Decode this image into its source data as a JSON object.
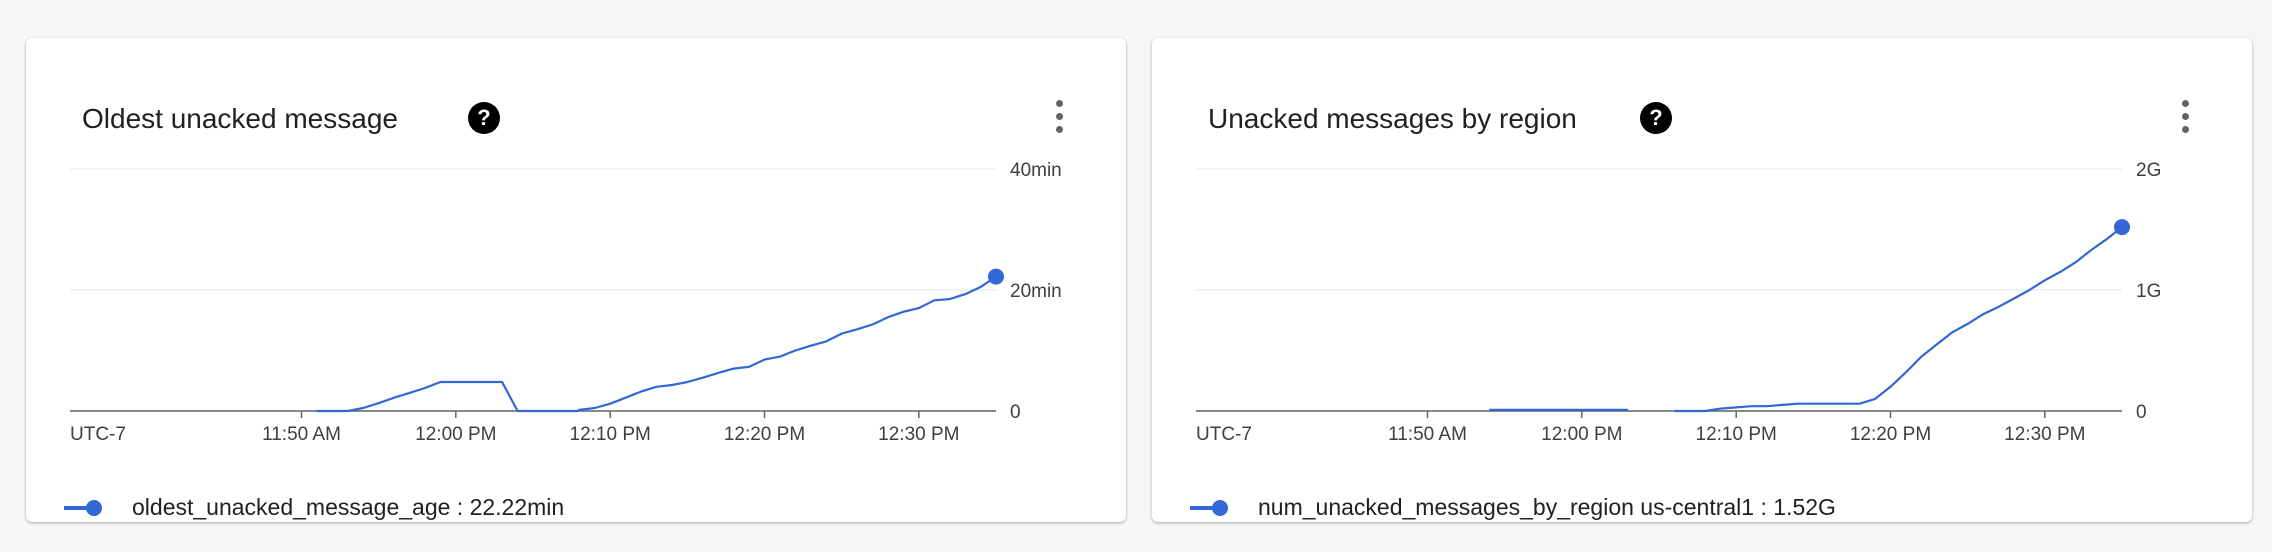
{
  "card1": {
    "title": "Oldest unacked message",
    "help_glyph": "?",
    "legend_series": "oldest_unacked_message_age",
    "legend_value": "22.22min"
  },
  "card2": {
    "title": "Unacked messages by region",
    "help_glyph": "?",
    "legend_series": "num_unacked_messages_by_region us-central1",
    "legend_value": "1.52G"
  },
  "icons": {
    "help": "help-icon",
    "menu": "more-vert-icon",
    "legend": "legend-series-icon"
  },
  "colors": {
    "series": "#3367d6",
    "grid": "#e8eaed",
    "axis": "#5f6368"
  },
  "chart_data": [
    {
      "type": "line",
      "timezone_label": "UTC-7",
      "x_unit": "minutes after 11:37 AM",
      "x_ticks": [
        {
          "x": 13,
          "label": "11:50 AM"
        },
        {
          "x": 23,
          "label": "12:00 PM"
        },
        {
          "x": 33,
          "label": "12:10 PM"
        },
        {
          "x": 43,
          "label": "12:20 PM"
        },
        {
          "x": 53,
          "label": "12:30 PM"
        }
      ],
      "xlim": [
        -2,
        58
      ],
      "ylim": [
        0,
        40
      ],
      "y_ticks": [
        {
          "y": 0,
          "label": "0"
        },
        {
          "y": 20,
          "label": "20min"
        },
        {
          "y": 40,
          "label": "40min"
        }
      ],
      "grid": true,
      "legend_position": "bottom-left",
      "series": [
        {
          "name": "oldest_unacked_message_age",
          "x": [
            14,
            16,
            17,
            18,
            19,
            20,
            21,
            22,
            23,
            24,
            25,
            26,
            27,
            28,
            29,
            30,
            30.9,
            31,
            32,
            33,
            34,
            35,
            36,
            37,
            38,
            39,
            40,
            41,
            42,
            43,
            44,
            45,
            46,
            47,
            48,
            49,
            50,
            51,
            52,
            53,
            54,
            55,
            56,
            57,
            58
          ],
          "y": [
            0,
            0,
            0.5,
            1.3,
            2.2,
            3,
            3.8,
            4.8,
            4.8,
            4.8,
            4.8,
            4.8,
            0,
            0,
            0,
            0,
            0,
            0.2,
            0.5,
            1.2,
            2.2,
            3.2,
            4,
            4.3,
            4.8,
            5.5,
            6.3,
            7,
            7.3,
            8.5,
            9,
            10,
            10.8,
            11.5,
            12.8,
            13.5,
            14.3,
            15.5,
            16.4,
            17,
            18.3,
            18.5,
            19.3,
            20.5,
            22.22
          ]
        }
      ]
    },
    {
      "type": "line",
      "timezone_label": "UTC-7",
      "x_unit": "minutes after 11:37 AM",
      "x_ticks": [
        {
          "x": 13,
          "label": "11:50 AM"
        },
        {
          "x": 23,
          "label": "12:00 PM"
        },
        {
          "x": 33,
          "label": "12:10 PM"
        },
        {
          "x": 43,
          "label": "12:20 PM"
        },
        {
          "x": 53,
          "label": "12:30 PM"
        }
      ],
      "xlim": [
        -2,
        58
      ],
      "ylim": [
        0,
        2
      ],
      "y_ticks": [
        {
          "y": 0,
          "label": "0"
        },
        {
          "y": 1,
          "label": "1G"
        },
        {
          "y": 2,
          "label": "2G"
        }
      ],
      "grid": true,
      "legend_position": "bottom-left",
      "series": [
        {
          "name": "num_unacked_messages_by_region us-central1",
          "segments": [
            {
              "x": [
                17,
                26
              ],
              "y": [
                0.01,
                0.01
              ]
            },
            {
              "x": [
                29,
                31,
                32,
                33,
                34,
                35,
                36,
                37,
                38,
                39,
                40,
                41,
                42,
                43,
                44,
                45,
                46,
                47,
                48,
                49,
                50,
                51,
                52,
                53,
                54,
                55,
                56,
                57,
                58
              ],
              "y": [
                0,
                0,
                0.02,
                0.03,
                0.04,
                0.04,
                0.05,
                0.06,
                0.06,
                0.06,
                0.06,
                0.06,
                0.1,
                0.2,
                0.32,
                0.45,
                0.55,
                0.65,
                0.72,
                0.8,
                0.86,
                0.93,
                1.0,
                1.08,
                1.15,
                1.23,
                1.33,
                1.42,
                1.52
              ]
            }
          ]
        }
      ]
    }
  ]
}
